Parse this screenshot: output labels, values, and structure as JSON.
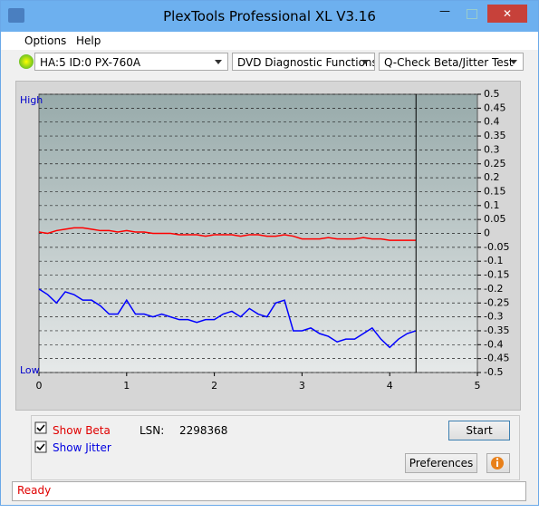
{
  "window": {
    "title": "PlexTools Professional XL V3.16"
  },
  "menu": [
    "Options",
    "Help"
  ],
  "toolbar": {
    "drive": "HA:5 ID:0  PX-760A",
    "function": "DVD Diagnostic Functions",
    "test": "Q-Check Beta/Jitter Test"
  },
  "chart_data": {
    "type": "line",
    "high_label": "High",
    "low_label": "Low",
    "x": [
      0,
      0.1,
      0.2,
      0.3,
      0.4,
      0.5,
      0.6,
      0.7,
      0.8,
      0.9,
      1,
      1.1,
      1.2,
      1.3,
      1.4,
      1.5,
      1.6,
      1.7,
      1.8,
      1.9,
      2,
      2.1,
      2.2,
      2.3,
      2.4,
      2.5,
      2.6,
      2.7,
      2.8,
      2.9,
      3,
      3.1,
      3.2,
      3.3,
      3.4,
      3.5,
      3.6,
      3.7,
      3.8,
      3.9,
      4,
      4.1,
      4.2,
      4.3
    ],
    "series": [
      {
        "name": "Beta",
        "color": "#ff0000",
        "values": [
          0.005,
          0,
          0.01,
          0.015,
          0.02,
          0.02,
          0.015,
          0.01,
          0.01,
          0.005,
          0.01,
          0.005,
          0.005,
          0,
          0,
          0,
          -0.005,
          -0.005,
          -0.005,
          -0.01,
          -0.005,
          -0.005,
          -0.005,
          -0.01,
          -0.005,
          -0.005,
          -0.01,
          -0.01,
          -0.005,
          -0.01,
          -0.02,
          -0.02,
          -0.02,
          -0.015,
          -0.02,
          -0.02,
          -0.02,
          -0.015,
          -0.02,
          -0.02,
          -0.025,
          -0.025,
          -0.025,
          -0.025
        ]
      },
      {
        "name": "Jitter",
        "color": "#0000ff",
        "values": [
          -0.2,
          -0.22,
          -0.25,
          -0.21,
          -0.22,
          -0.24,
          -0.24,
          -0.26,
          -0.29,
          -0.29,
          -0.24,
          -0.29,
          -0.29,
          -0.3,
          -0.29,
          -0.3,
          -0.31,
          -0.31,
          -0.32,
          -0.31,
          -0.31,
          -0.29,
          -0.28,
          -0.3,
          -0.27,
          -0.29,
          -0.3,
          -0.25,
          -0.24,
          -0.35,
          -0.35,
          -0.34,
          -0.36,
          -0.37,
          -0.39,
          -0.38,
          -0.38,
          -0.36,
          -0.34,
          -0.38,
          -0.41,
          -0.38,
          -0.36,
          -0.35
        ]
      }
    ],
    "xlim": [
      0,
      5
    ],
    "xticks": [
      0,
      1,
      2,
      3,
      4,
      5
    ],
    "ylim": [
      -0.5,
      0.5
    ],
    "yticks": [
      0.5,
      0.45,
      0.4,
      0.35,
      0.3,
      0.25,
      0.2,
      0.15,
      0.1,
      0.05,
      0,
      -0.05,
      -0.1,
      -0.15,
      -0.2,
      -0.25,
      -0.3,
      -0.35,
      -0.4,
      -0.45,
      -0.5
    ],
    "grid": true
  },
  "controls": {
    "show_beta": "Show Beta",
    "show_jitter": "Show Jitter",
    "lsn_label": "LSN:",
    "lsn_value": "2298368",
    "start": "Start",
    "preferences": "Preferences"
  },
  "status": "Ready"
}
